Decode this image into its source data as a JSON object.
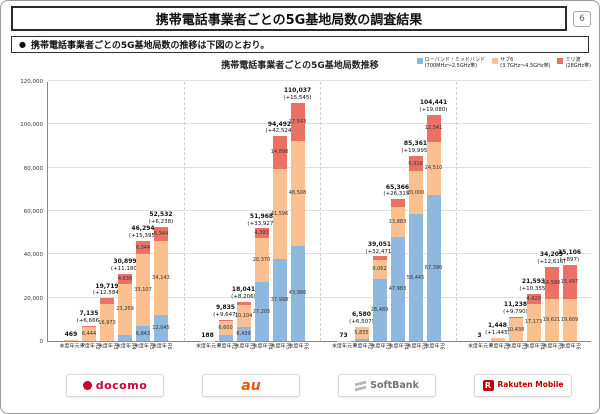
{
  "header": {
    "title": "携帯電話事業者ごとの5G基地局数の調査結果",
    "page_number": "6"
  },
  "note": {
    "marker": "●",
    "text": "携帯電話事業者ごとの5G基地局数の推移は下図のとおり。"
  },
  "footer": {
    "carriers": [
      {
        "id": "docomo",
        "label": "docomo"
      },
      {
        "id": "au",
        "label": "au"
      },
      {
        "id": "softbank",
        "label": "SoftBank"
      },
      {
        "id": "rakuten",
        "label": "Rakuten Mobile"
      }
    ]
  },
  "colors": {
    "low_mid_band": "#8FB8DE",
    "sub6": "#FAC08F",
    "mmwave": "#E97265",
    "docomo_brand": "#CC0033",
    "au_brand": "#EB5505",
    "softbank_brand": "#737373",
    "rakuten_brand": "#BF0000"
  },
  "chart_data": {
    "type": "bar",
    "stacked": true,
    "title": "携帯電話事業者ごとの5G基地局数推移",
    "xlabel": "",
    "ylabel": "",
    "ylim": [
      0,
      120000
    ],
    "ytick_interval": 20000,
    "grid": true,
    "legend_position": "top-right",
    "categories": [
      "R元年度末",
      "R2年度末",
      "R3年度末",
      "R4年度末",
      "R5年度末",
      "R6年度末"
    ],
    "series": [
      {
        "key": "low_mid",
        "name": "ローバンド・ミッドバンド",
        "band": "(700MHz〜2.5GHz帯)",
        "color": "#8FB8DE"
      },
      {
        "key": "sub6",
        "name": "サブ6",
        "band": "(3.7GHz〜4.5GHz帯)",
        "color": "#FAC08F"
      },
      {
        "key": "mmwave",
        "name": "ミリ波",
        "band": "(28GHz帯)",
        "color": "#E97265"
      }
    ],
    "groups": [
      {
        "carrier": "docomo",
        "bars": [
          {
            "period": "R元年度末",
            "total": 469,
            "delta": null,
            "segments": [
              0,
              457,
              12
            ]
          },
          {
            "period": "R2年度末",
            "total": 7135,
            "delta": 6666,
            "segments": [
              0,
              6444,
              691
            ]
          },
          {
            "period": "R3年度末",
            "total": 19719,
            "delta": 12584,
            "segments": [
              0,
              16973,
              2746
            ]
          },
          {
            "period": "R4年度末",
            "total": 30899,
            "delta": 11180,
            "segments": [
              2994,
              23269,
              4636
            ]
          },
          {
            "period": "R5年度末",
            "total": 46294,
            "delta": 15395,
            "segments": [
              6843,
              33107,
              6344
            ]
          },
          {
            "period": "R6年度末",
            "total": 52532,
            "delta": 6238,
            "segments": [
              12045,
              34143,
              6344
            ]
          }
        ]
      },
      {
        "carrier": "au",
        "bars": [
          {
            "period": "R元年度末",
            "total": 188,
            "delta": null,
            "segments": [
              0,
              186,
              2
            ]
          },
          {
            "period": "R2年度末",
            "total": 9835,
            "delta": 9647,
            "segments": [
              2706,
              6600,
              529
            ]
          },
          {
            "period": "R3年度末",
            "total": 18041,
            "delta": 8206,
            "segments": [
              6439,
              10104,
              1498
            ]
          },
          {
            "period": "R4年度末",
            "total": 51968,
            "delta": 33927,
            "segments": [
              27205,
              20370,
              4393
            ]
          },
          {
            "period": "R5年度末",
            "total": 94492,
            "delta": 42524,
            "segments": [
              37998,
              41596,
              14898
            ]
          },
          {
            "period": "R6年度末",
            "total": 110037,
            "delta": 15545,
            "segments": [
              43986,
              48508,
              17543
            ]
          }
        ]
      },
      {
        "carrier": "SoftBank",
        "bars": [
          {
            "period": "R元年度末",
            "total": 73,
            "delta": null,
            "segments": [
              0,
              73,
              0
            ]
          },
          {
            "period": "R2年度末",
            "total": 6580,
            "delta": 6507,
            "segments": [
              745,
              5835,
              0
            ]
          },
          {
            "period": "R3年度末",
            "total": 39051,
            "delta": 32471,
            "segments": [
              28489,
              9062,
              1500
            ]
          },
          {
            "period": "R4年度末",
            "total": 65366,
            "delta": 26315,
            "segments": [
              47983,
              13883,
              3500
            ]
          },
          {
            "period": "R5年度末",
            "total": 85361,
            "delta": 19995,
            "segments": [
              58445,
              20000,
              6916
            ]
          },
          {
            "period": "R6年度末",
            "total": 104441,
            "delta": 19080,
            "segments": [
              67390,
              24510,
              12541
            ]
          }
        ]
      },
      {
        "carrier": "Rakuten Mobile",
        "bars": [
          {
            "period": "R元年度末",
            "total": 3,
            "delta": null,
            "segments": [
              0,
              3,
              0
            ]
          },
          {
            "period": "R2年度末",
            "total": 1448,
            "delta": 1445,
            "segments": [
              0,
              1448,
              0
            ]
          },
          {
            "period": "R3年度末",
            "total": 11238,
            "delta": 9790,
            "segments": [
              0,
              10438,
              800
            ]
          },
          {
            "period": "R4年度末",
            "total": 21593,
            "delta": 10355,
            "segments": [
              0,
              17173,
              4420
            ]
          },
          {
            "period": "R5年度末",
            "total": 34209,
            "delta": 12616,
            "segments": [
              0,
              19621,
              14588
            ]
          },
          {
            "period": "R6年度末",
            "total": 35106,
            "delta": 897,
            "segments": [
              0,
              19609,
              15497
            ]
          }
        ]
      }
    ]
  }
}
